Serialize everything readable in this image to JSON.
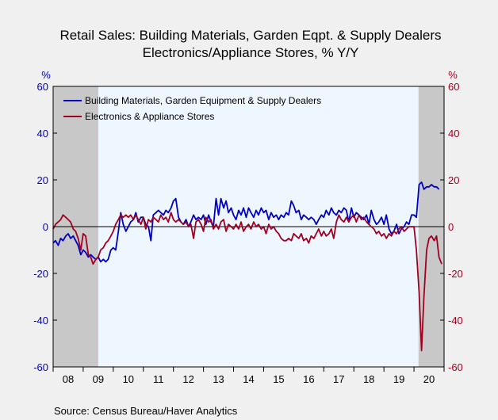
{
  "chart_data": {
    "type": "line",
    "title": "Retail Sales: Building Materials, Garden Eqpt. & Supply Dealers",
    "subtitle": "Electronics/Appliance Stores, % Y/Y",
    "left_axis_unit": "%",
    "right_axis_unit": "%",
    "ylim": [
      -60,
      60
    ],
    "yticks": [
      -60,
      -40,
      -20,
      0,
      20,
      40,
      60
    ],
    "xlim": [
      2008.0,
      2021.0
    ],
    "xtick_labels": [
      "08",
      "09",
      "10",
      "11",
      "12",
      "13",
      "14",
      "15",
      "16",
      "17",
      "18",
      "19",
      "20"
    ],
    "recessions": [
      [
        2008.0,
        2009.5
      ],
      [
        2020.15,
        2021.0
      ]
    ],
    "source": "Source:  Census Bureau/Haver Analytics",
    "legend_position": "top-left",
    "grid": false,
    "series": [
      {
        "name": "Building Materials, Garden Equipment & Supply Dealers",
        "color": "#0000c0",
        "axis": "left",
        "points": [
          [
            2008.0,
            -7
          ],
          [
            2008.08,
            -6
          ],
          [
            2008.17,
            -8
          ],
          [
            2008.25,
            -5
          ],
          [
            2008.33,
            -6
          ],
          [
            2008.42,
            -4
          ],
          [
            2008.5,
            -3
          ],
          [
            2008.58,
            -5
          ],
          [
            2008.67,
            -4
          ],
          [
            2008.75,
            -6
          ],
          [
            2008.83,
            -8
          ],
          [
            2008.92,
            -12
          ],
          [
            2009.0,
            -10
          ],
          [
            2009.08,
            -11
          ],
          [
            2009.17,
            -13
          ],
          [
            2009.25,
            -12
          ],
          [
            2009.33,
            -13
          ],
          [
            2009.42,
            -14
          ],
          [
            2009.5,
            -13
          ],
          [
            2009.58,
            -15
          ],
          [
            2009.67,
            -14
          ],
          [
            2009.75,
            -15
          ],
          [
            2009.83,
            -14
          ],
          [
            2009.92,
            -10
          ],
          [
            2010.0,
            -9
          ],
          [
            2010.08,
            -10
          ],
          [
            2010.17,
            -2
          ],
          [
            2010.25,
            6
          ],
          [
            2010.33,
            1
          ],
          [
            2010.42,
            -2
          ],
          [
            2010.5,
            0
          ],
          [
            2010.58,
            2
          ],
          [
            2010.67,
            3
          ],
          [
            2010.75,
            6
          ],
          [
            2010.83,
            2
          ],
          [
            2010.92,
            4
          ],
          [
            2011.0,
            4
          ],
          [
            2011.08,
            1
          ],
          [
            2011.17,
            0
          ],
          [
            2011.25,
            -6
          ],
          [
            2011.33,
            5
          ],
          [
            2011.42,
            6
          ],
          [
            2011.5,
            7
          ],
          [
            2011.58,
            6
          ],
          [
            2011.67,
            5
          ],
          [
            2011.75,
            7
          ],
          [
            2011.83,
            6
          ],
          [
            2011.92,
            8
          ],
          [
            2012.0,
            11
          ],
          [
            2012.08,
            12
          ],
          [
            2012.17,
            4
          ],
          [
            2012.25,
            2
          ],
          [
            2012.33,
            1
          ],
          [
            2012.42,
            3
          ],
          [
            2012.5,
            0
          ],
          [
            2012.58,
            2
          ],
          [
            2012.67,
            5
          ],
          [
            2012.75,
            3
          ],
          [
            2012.83,
            4
          ],
          [
            2012.92,
            3
          ],
          [
            2013.0,
            5
          ],
          [
            2013.08,
            1
          ],
          [
            2013.17,
            5
          ],
          [
            2013.25,
            2
          ],
          [
            2013.33,
            0
          ],
          [
            2013.42,
            12
          ],
          [
            2013.5,
            5
          ],
          [
            2013.58,
            12
          ],
          [
            2013.67,
            8
          ],
          [
            2013.75,
            11
          ],
          [
            2013.83,
            6
          ],
          [
            2013.92,
            8
          ],
          [
            2014.0,
            5
          ],
          [
            2014.08,
            3
          ],
          [
            2014.17,
            7
          ],
          [
            2014.25,
            5
          ],
          [
            2014.33,
            8
          ],
          [
            2014.42,
            4
          ],
          [
            2014.5,
            8
          ],
          [
            2014.58,
            6
          ],
          [
            2014.67,
            4
          ],
          [
            2014.75,
            7
          ],
          [
            2014.83,
            5
          ],
          [
            2014.92,
            8
          ],
          [
            2015.0,
            6
          ],
          [
            2015.08,
            7
          ],
          [
            2015.17,
            3
          ],
          [
            2015.25,
            6
          ],
          [
            2015.33,
            4
          ],
          [
            2015.42,
            5
          ],
          [
            2015.5,
            3
          ],
          [
            2015.58,
            5
          ],
          [
            2015.67,
            4
          ],
          [
            2015.75,
            6
          ],
          [
            2015.83,
            5
          ],
          [
            2015.92,
            11
          ],
          [
            2016.0,
            9
          ],
          [
            2016.08,
            6
          ],
          [
            2016.17,
            7
          ],
          [
            2016.25,
            3
          ],
          [
            2016.33,
            5
          ],
          [
            2016.42,
            4
          ],
          [
            2016.5,
            3
          ],
          [
            2016.58,
            4
          ],
          [
            2016.67,
            3
          ],
          [
            2016.75,
            1
          ],
          [
            2016.83,
            3
          ],
          [
            2016.92,
            5
          ],
          [
            2017.0,
            4
          ],
          [
            2017.08,
            7
          ],
          [
            2017.17,
            5
          ],
          [
            2017.25,
            8
          ],
          [
            2017.33,
            6
          ],
          [
            2017.42,
            5
          ],
          [
            2017.5,
            7
          ],
          [
            2017.58,
            6
          ],
          [
            2017.67,
            8
          ],
          [
            2017.75,
            7
          ],
          [
            2017.83,
            2
          ],
          [
            2017.92,
            8
          ],
          [
            2018.0,
            4
          ],
          [
            2018.08,
            6
          ],
          [
            2018.17,
            5
          ],
          [
            2018.25,
            4
          ],
          [
            2018.33,
            3
          ],
          [
            2018.42,
            5
          ],
          [
            2018.5,
            1
          ],
          [
            2018.58,
            7
          ],
          [
            2018.67,
            3
          ],
          [
            2018.75,
            1
          ],
          [
            2018.83,
            2
          ],
          [
            2018.92,
            4
          ],
          [
            2019.0,
            1
          ],
          [
            2019.08,
            5
          ],
          [
            2019.17,
            -1
          ],
          [
            2019.25,
            -3
          ],
          [
            2019.33,
            -2
          ],
          [
            2019.42,
            1
          ],
          [
            2019.5,
            -3
          ],
          [
            2019.58,
            -1
          ],
          [
            2019.67,
            0
          ],
          [
            2019.75,
            2
          ],
          [
            2019.83,
            1
          ],
          [
            2019.92,
            5
          ],
          [
            2020.0,
            5
          ],
          [
            2020.08,
            4
          ],
          [
            2020.17,
            18
          ],
          [
            2020.25,
            19
          ],
          [
            2020.33,
            16
          ],
          [
            2020.42,
            17
          ],
          [
            2020.5,
            17
          ],
          [
            2020.58,
            18
          ],
          [
            2020.67,
            17
          ],
          [
            2020.75,
            17
          ],
          [
            2020.83,
            16
          ]
        ]
      },
      {
        "name": "Electronics & Appliance Stores",
        "color": "#a00020",
        "axis": "right",
        "points": [
          [
            2008.0,
            -1
          ],
          [
            2008.08,
            1
          ],
          [
            2008.17,
            2
          ],
          [
            2008.25,
            3
          ],
          [
            2008.33,
            5
          ],
          [
            2008.42,
            4
          ],
          [
            2008.5,
            3
          ],
          [
            2008.58,
            2
          ],
          [
            2008.67,
            -1
          ],
          [
            2008.75,
            -2
          ],
          [
            2008.83,
            -5
          ],
          [
            2008.92,
            -10
          ],
          [
            2009.0,
            -3
          ],
          [
            2009.08,
            -4
          ],
          [
            2009.17,
            -12
          ],
          [
            2009.25,
            -13
          ],
          [
            2009.33,
            -16
          ],
          [
            2009.42,
            -14
          ],
          [
            2009.5,
            -13
          ],
          [
            2009.58,
            -10
          ],
          [
            2009.67,
            -9
          ],
          [
            2009.75,
            -7
          ],
          [
            2009.83,
            -6
          ],
          [
            2009.92,
            -4
          ],
          [
            2010.0,
            -2
          ],
          [
            2010.08,
            1
          ],
          [
            2010.17,
            3
          ],
          [
            2010.25,
            5
          ],
          [
            2010.33,
            4
          ],
          [
            2010.42,
            5
          ],
          [
            2010.5,
            4
          ],
          [
            2010.58,
            5
          ],
          [
            2010.67,
            3
          ],
          [
            2010.75,
            5
          ],
          [
            2010.83,
            3
          ],
          [
            2010.92,
            1
          ],
          [
            2011.0,
            4
          ],
          [
            2011.08,
            -1
          ],
          [
            2011.17,
            3
          ],
          [
            2011.25,
            2
          ],
          [
            2011.33,
            4
          ],
          [
            2011.42,
            3
          ],
          [
            2011.5,
            2
          ],
          [
            2011.58,
            5
          ],
          [
            2011.67,
            3
          ],
          [
            2011.75,
            4
          ],
          [
            2011.83,
            2
          ],
          [
            2011.92,
            6
          ],
          [
            2012.0,
            3
          ],
          [
            2012.08,
            2
          ],
          [
            2012.17,
            3
          ],
          [
            2012.25,
            2
          ],
          [
            2012.33,
            1
          ],
          [
            2012.42,
            2
          ],
          [
            2012.5,
            0
          ],
          [
            2012.58,
            1
          ],
          [
            2012.67,
            -5
          ],
          [
            2012.75,
            2
          ],
          [
            2012.83,
            3
          ],
          [
            2012.92,
            1
          ],
          [
            2013.0,
            -2
          ],
          [
            2013.08,
            4
          ],
          [
            2013.17,
            2
          ],
          [
            2013.25,
            3
          ],
          [
            2013.33,
            -1
          ],
          [
            2013.42,
            1
          ],
          [
            2013.5,
            -1
          ],
          [
            2013.58,
            2
          ],
          [
            2013.67,
            3
          ],
          [
            2013.75,
            -2
          ],
          [
            2013.83,
            1
          ],
          [
            2013.92,
            0
          ],
          [
            2014.0,
            -1
          ],
          [
            2014.08,
            1
          ],
          [
            2014.17,
            -1
          ],
          [
            2014.25,
            2
          ],
          [
            2014.33,
            -2
          ],
          [
            2014.42,
            0
          ],
          [
            2014.5,
            1
          ],
          [
            2014.58,
            -1
          ],
          [
            2014.67,
            2
          ],
          [
            2014.75,
            0
          ],
          [
            2014.83,
            1
          ],
          [
            2014.92,
            -1
          ],
          [
            2015.0,
            0
          ],
          [
            2015.08,
            -3
          ],
          [
            2015.17,
            1
          ],
          [
            2015.25,
            -1
          ],
          [
            2015.33,
            0
          ],
          [
            2015.42,
            -2
          ],
          [
            2015.5,
            -3
          ],
          [
            2015.58,
            -5
          ],
          [
            2015.67,
            -6
          ],
          [
            2015.75,
            -6
          ],
          [
            2015.83,
            -5
          ],
          [
            2015.92,
            -6
          ],
          [
            2016.0,
            -3
          ],
          [
            2016.08,
            -4
          ],
          [
            2016.17,
            -5
          ],
          [
            2016.25,
            -3
          ],
          [
            2016.33,
            -6
          ],
          [
            2016.42,
            -5
          ],
          [
            2016.5,
            -7
          ],
          [
            2016.58,
            -4
          ],
          [
            2016.67,
            -5
          ],
          [
            2016.75,
            -3
          ],
          [
            2016.83,
            -1
          ],
          [
            2016.92,
            -4
          ],
          [
            2017.0,
            -2
          ],
          [
            2017.08,
            -4
          ],
          [
            2017.17,
            -3
          ],
          [
            2017.25,
            -1
          ],
          [
            2017.33,
            -5
          ],
          [
            2017.42,
            2
          ],
          [
            2017.5,
            5
          ],
          [
            2017.58,
            3
          ],
          [
            2017.67,
            2
          ],
          [
            2017.75,
            4
          ],
          [
            2017.83,
            2
          ],
          [
            2017.92,
            4
          ],
          [
            2018.0,
            5
          ],
          [
            2018.08,
            2
          ],
          [
            2018.17,
            5
          ],
          [
            2018.25,
            3
          ],
          [
            2018.33,
            4
          ],
          [
            2018.42,
            2
          ],
          [
            2018.5,
            1
          ],
          [
            2018.58,
            0
          ],
          [
            2018.67,
            -1
          ],
          [
            2018.75,
            -3
          ],
          [
            2018.83,
            -2
          ],
          [
            2018.92,
            -4
          ],
          [
            2019.0,
            -3
          ],
          [
            2019.08,
            -5
          ],
          [
            2019.17,
            -3
          ],
          [
            2019.25,
            -4
          ],
          [
            2019.33,
            -2
          ],
          [
            2019.42,
            -3
          ],
          [
            2019.5,
            -1
          ],
          [
            2019.58,
            0
          ],
          [
            2019.67,
            -2
          ],
          [
            2019.75,
            -1
          ],
          [
            2019.83,
            0
          ],
          [
            2019.92,
            0
          ],
          [
            2020.0,
            0
          ],
          [
            2020.08,
            -10
          ],
          [
            2020.17,
            -28
          ],
          [
            2020.25,
            -53
          ],
          [
            2020.33,
            -30
          ],
          [
            2020.42,
            -10
          ],
          [
            2020.5,
            -5
          ],
          [
            2020.58,
            -4
          ],
          [
            2020.67,
            -6
          ],
          [
            2020.75,
            -4
          ],
          [
            2020.83,
            -13
          ],
          [
            2020.92,
            -16
          ]
        ]
      }
    ]
  }
}
